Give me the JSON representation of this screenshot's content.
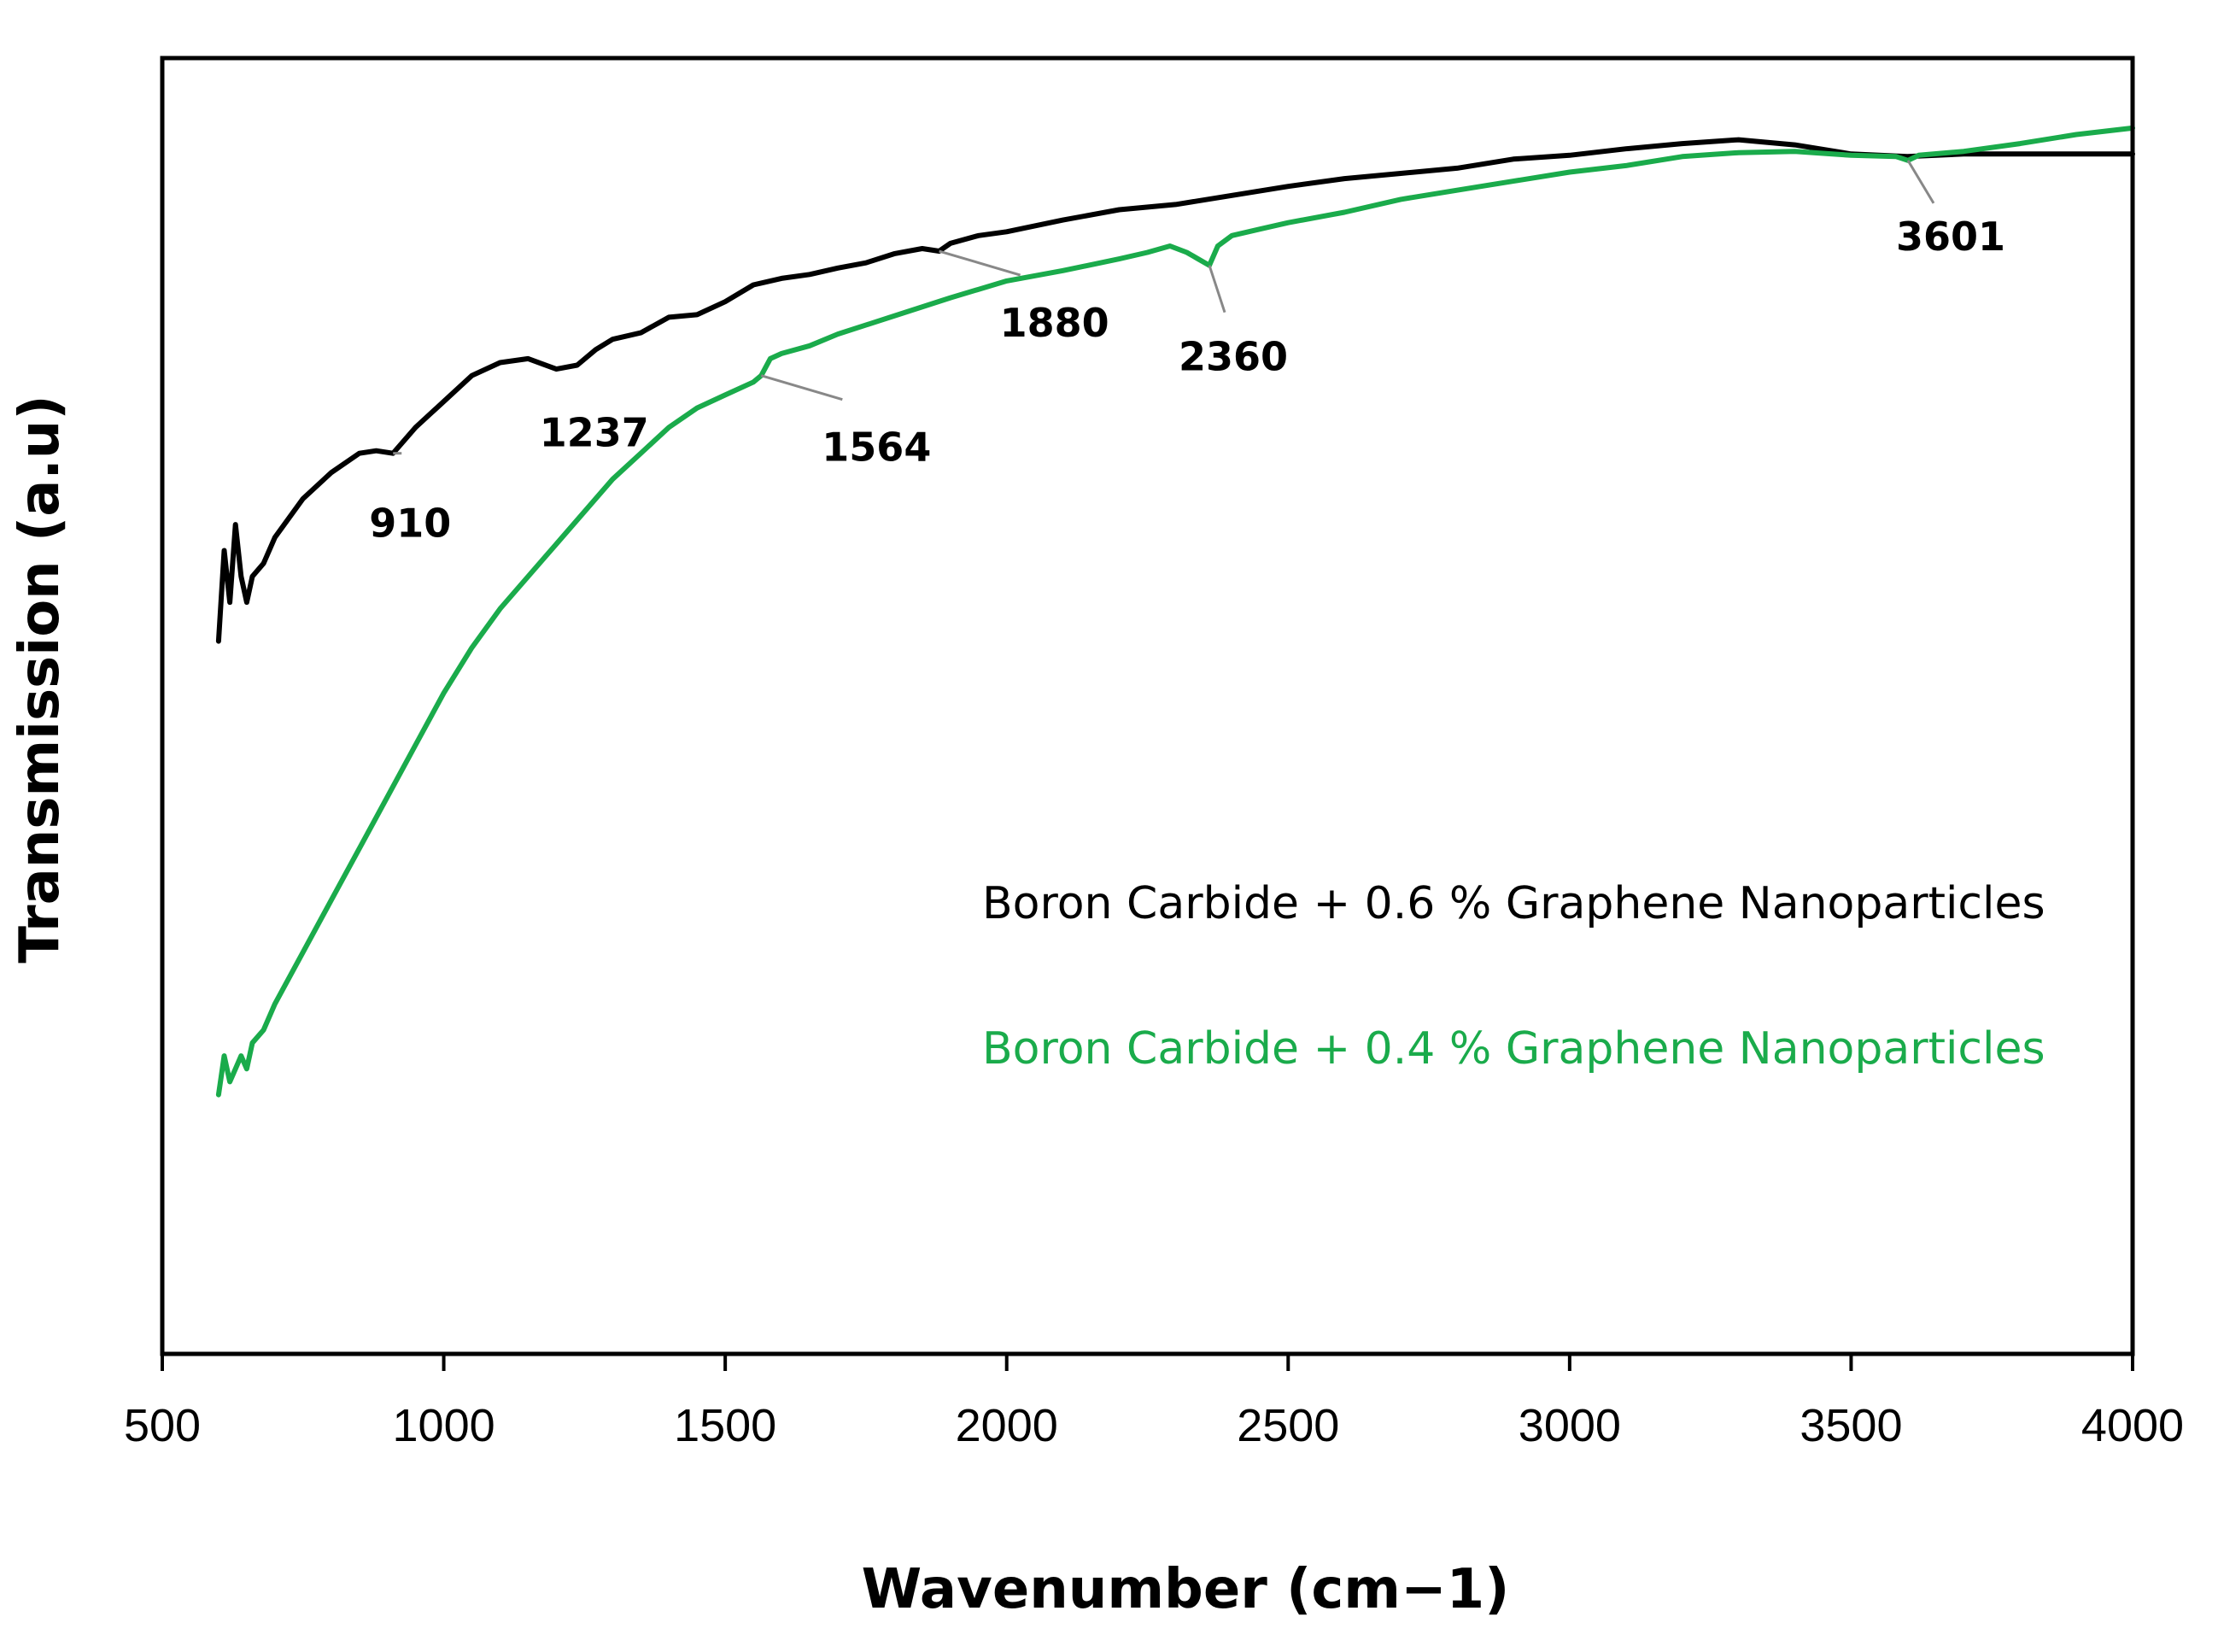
{
  "chart_data": {
    "type": "line",
    "title": "",
    "xlabel": "Wavenumber (cm−1)",
    "ylabel": "Transmission (a.u)",
    "xlim": [
      500,
      4000
    ],
    "ylim": [
      0,
      100
    ],
    "xticks": [
      "500",
      "1000",
      "1500",
      "2000",
      "2500",
      "3000",
      "3500",
      "4000"
    ],
    "grid": false,
    "legend_position": "right-center",
    "series": [
      {
        "name": "Boron Carbide + 0.6 % Graphene Nanoparticles",
        "color": "#000000",
        "x": [
          600,
          610,
          620,
          630,
          640,
          650,
          660,
          680,
          700,
          750,
          800,
          850,
          880,
          910,
          950,
          1000,
          1050,
          1100,
          1150,
          1200,
          1237,
          1270,
          1300,
          1350,
          1400,
          1450,
          1500,
          1550,
          1600,
          1650,
          1700,
          1750,
          1800,
          1850,
          1880,
          1900,
          1950,
          2000,
          2100,
          2200,
          2300,
          2400,
          2500,
          2600,
          2700,
          2800,
          2900,
          3000,
          3100,
          3200,
          3300,
          3400,
          3500,
          3600,
          3700,
          3800,
          3900,
          4000
        ],
        "y": [
          55,
          62,
          58,
          64,
          60,
          58,
          60,
          61,
          63,
          66,
          68,
          69.5,
          69.7,
          69.5,
          71.5,
          73.5,
          75.5,
          76.5,
          76.8,
          76,
          76.3,
          77.5,
          78.3,
          78.8,
          80,
          80.2,
          81.2,
          82.5,
          83,
          83.3,
          83.8,
          84.2,
          84.9,
          85.3,
          85.1,
          85.7,
          86.3,
          86.6,
          87.5,
          88.3,
          88.7,
          89.4,
          90.1,
          90.7,
          91.1,
          91.5,
          92.2,
          92.5,
          93,
          93.4,
          93.7,
          93.3,
          92.6,
          92.4,
          92.6,
          92.6,
          92.6,
          92.6
        ]
      },
      {
        "name": "Boron Carbide + 0.4 % Graphene Nanoparticles",
        "color": "#1aab4b",
        "x": [
          600,
          610,
          620,
          630,
          640,
          650,
          660,
          680,
          700,
          750,
          800,
          850,
          900,
          950,
          1000,
          1050,
          1100,
          1150,
          1200,
          1250,
          1300,
          1350,
          1400,
          1450,
          1500,
          1550,
          1564,
          1580,
          1600,
          1650,
          1700,
          1800,
          1900,
          2000,
          2100,
          2200,
          2250,
          2290,
          2320,
          2340,
          2360,
          2375,
          2400,
          2450,
          2500,
          2600,
          2700,
          2800,
          2900,
          3000,
          3100,
          3200,
          3300,
          3400,
          3500,
          3580,
          3601,
          3620,
          3700,
          3800,
          3900,
          4000
        ],
        "y": [
          20,
          23,
          21,
          22,
          23,
          22,
          24,
          25,
          27,
          31,
          35,
          39,
          43,
          47,
          51,
          54.5,
          57.5,
          60,
          62.5,
          65,
          67.5,
          69.5,
          71.5,
          73,
          74,
          75,
          75.5,
          76.8,
          77.2,
          77.8,
          78.7,
          80.1,
          81.5,
          82.8,
          83.6,
          84.5,
          85,
          85.5,
          85,
          84.5,
          84,
          85.5,
          86.3,
          86.8,
          87.3,
          88.1,
          89.1,
          89.8,
          90.5,
          91.2,
          91.7,
          92.4,
          92.7,
          92.8,
          92.5,
          92.4,
          92.1,
          92.5,
          92.8,
          93.4,
          94.1,
          94.6
        ]
      }
    ],
    "annotations": [
      {
        "label": "910",
        "series": 0,
        "x": 910
      },
      {
        "label": "1237",
        "series": 0,
        "x": 1237
      },
      {
        "label": "1880",
        "series": 0,
        "x": 1880
      },
      {
        "label": "3601",
        "series": 1,
        "x": 3601
      },
      {
        "label": "2360",
        "series": 1,
        "x": 2360
      },
      {
        "label": "1564",
        "series": 1,
        "x": 1564
      }
    ]
  }
}
